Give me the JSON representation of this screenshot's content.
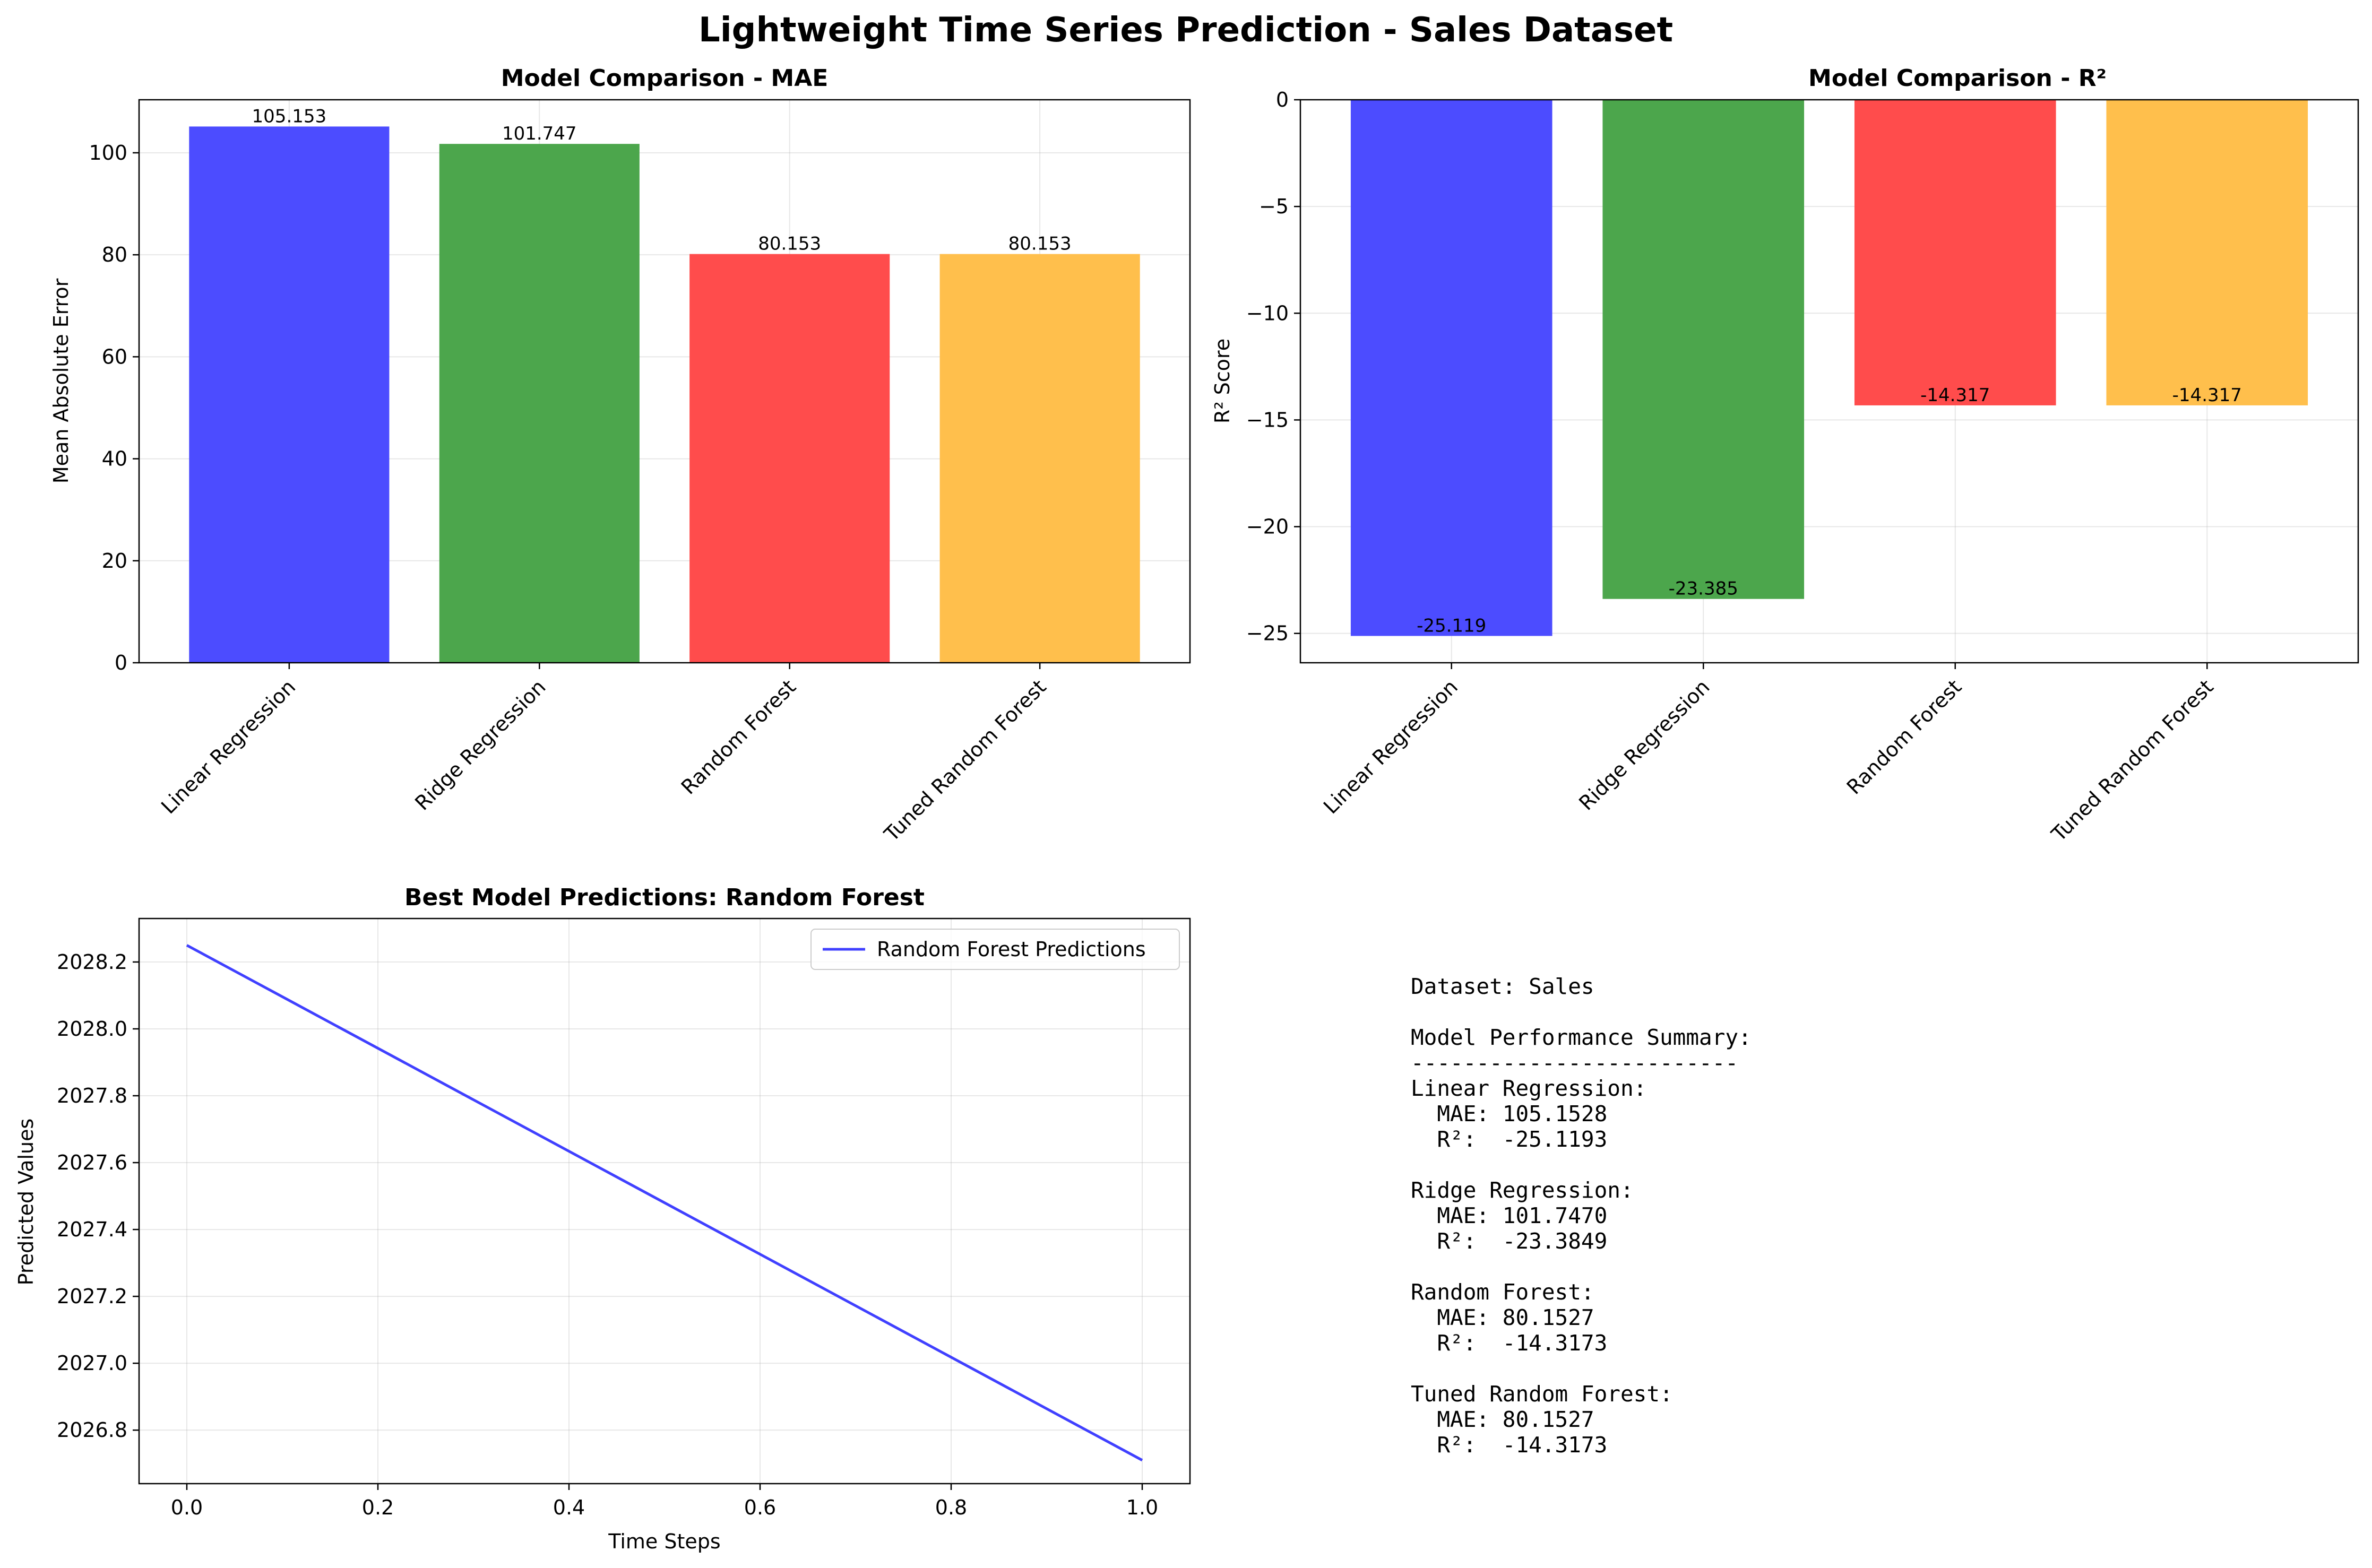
{
  "figure_title": "Lightweight Time Series Prediction - Sales Dataset",
  "chart_data": [
    {
      "type": "bar",
      "title": "Model Comparison - MAE",
      "xlabel": "",
      "ylabel": "Mean Absolute Error",
      "categories": [
        "Linear Regression",
        "Ridge Regression",
        "Random Forest",
        "Tuned Random Forest"
      ],
      "values": [
        105.153,
        101.747,
        80.153,
        80.153
      ],
      "value_labels": [
        "105.153",
        "101.747",
        "80.153",
        "80.153"
      ],
      "colors": [
        "#4c4cff",
        "#4ca64c",
        "#ff4c4c",
        "#ffbf4c"
      ],
      "ylim": [
        0,
        110.4
      ],
      "yticks": [
        0,
        20,
        40,
        60,
        80,
        100
      ],
      "grid": true
    },
    {
      "type": "bar",
      "title": "Model Comparison - R²",
      "xlabel": "",
      "ylabel": "R² Score",
      "categories": [
        "Linear Regression",
        "Ridge Regression",
        "Random Forest",
        "Tuned Random Forest"
      ],
      "values": [
        -25.119,
        -23.385,
        -14.317,
        -14.317
      ],
      "value_labels": [
        "-25.119",
        "-23.385",
        "-14.317",
        "-14.317"
      ],
      "colors": [
        "#4c4cff",
        "#4ca64c",
        "#ff4c4c",
        "#ffbf4c"
      ],
      "ylim": [
        -26.375,
        0
      ],
      "yticks": [
        0,
        -5,
        -10,
        -15,
        -20,
        -25
      ],
      "grid": true
    },
    {
      "type": "line",
      "title": "Best Model Predictions: Random Forest",
      "xlabel": "Time Steps",
      "ylabel": "Predicted Values",
      "series": [
        {
          "name": "Random Forest Predictions",
          "x": [
            0,
            1
          ],
          "y": [
            2028.25,
            2026.71
          ],
          "color": "#1f1fff"
        }
      ],
      "xlim": [
        -0.05,
        1.05
      ],
      "ylim": [
        2026.64,
        2028.33
      ],
      "xticks": [
        0.0,
        0.2,
        0.4,
        0.6,
        0.8,
        1.0
      ],
      "yticks": [
        2026.8,
        2027.0,
        2027.2,
        2027.4,
        2027.6,
        2027.8,
        2028.0,
        2028.2
      ],
      "legend": "top-right",
      "grid": true
    }
  ],
  "summary_lines": [
    "Dataset: Sales",
    "",
    "Model Performance Summary:",
    "-------------------------",
    "Linear Regression:",
    "  MAE: 105.1528",
    "  R²:  -25.1193",
    "",
    "Ridge Regression:",
    "  MAE: 101.7470",
    "  R²:  -23.3849",
    "",
    "Random Forest:",
    "  MAE: 80.1527",
    "  R²:  -14.3173",
    "",
    "Tuned Random Forest:",
    "  MAE: 80.1527",
    "  R²:  -14.3173"
  ]
}
